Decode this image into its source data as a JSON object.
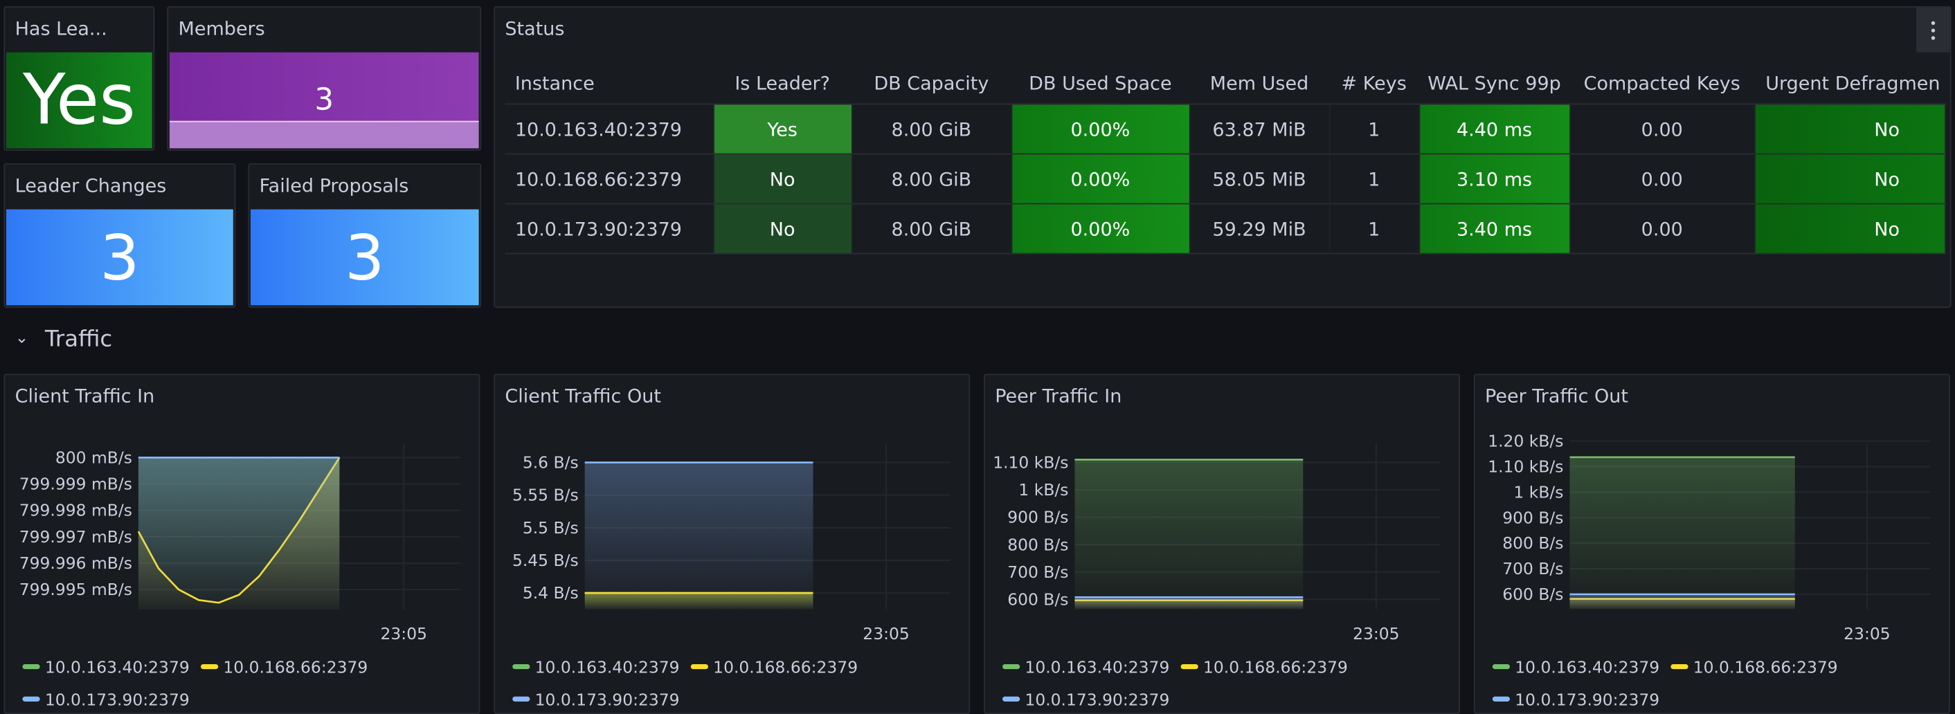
{
  "stats": [
    {
      "title": "Has Lea...",
      "value": "Yes"
    },
    {
      "title": "Members",
      "value": 3
    },
    {
      "title": "Leader Changes",
      "value": 3
    },
    {
      "title": "Failed Proposals",
      "value": 3
    }
  ],
  "status": {
    "title": "Status",
    "header": [
      "Instance",
      "Is Leader?",
      "DB Capacity",
      "DB Used Space",
      "Mem Used",
      "# Keys",
      "WAL Sync 99p",
      "Compacted Keys",
      "Urgent Defragmen"
    ],
    "rows": [
      [
        "10.0.163.40:2379",
        "Yes",
        "8.00 GiB",
        "0.00%",
        "63.87 MiB",
        1,
        "4.40 ms",
        "0.00",
        "No"
      ],
      [
        "10.0.168.66:2379",
        "No",
        "8.00 GiB",
        "0.00%",
        "58.05 MiB",
        1,
        "3.10 ms",
        "0.00",
        "No"
      ],
      [
        "10.0.173.90:2379",
        "No",
        "8.00 GiB",
        "0.00%",
        "59.29 MiB",
        1,
        "3.40 ms",
        "0.00",
        "No"
      ]
    ]
  },
  "row_title": "Traffic",
  "chart_data": [
    {
      "type": "line",
      "title": "Client Traffic In",
      "x": [
        1381.7,
        1381.95,
        1382.2,
        1382.45,
        1382.7,
        1382.95,
        1383.2,
        1383.45,
        1383.7,
        1383.95,
        1384.2
      ],
      "xlim": [
        1381.7,
        1385.7
      ],
      "xticks": [
        {
          "value": 1385,
          "label": "23:05"
        }
      ],
      "ylim": [
        799.99425,
        800.001
      ],
      "yticks": [
        {
          "value": 799.995,
          "label": "799.995 mB/s"
        },
        {
          "value": 799.996,
          "label": "799.996 mB/s"
        },
        {
          "value": 799.997,
          "label": "799.997 mB/s"
        },
        {
          "value": 799.998,
          "label": "799.998 mB/s"
        },
        {
          "value": 799.999,
          "label": "799.999 mB/s"
        },
        {
          "value": 800,
          "label": "800 mB/s"
        }
      ],
      "grid": true,
      "series": [
        {
          "name": "10.0.163.40:2379",
          "color": "#73bf69",
          "values": [
            800,
            800,
            800,
            800,
            800,
            800,
            800,
            800,
            800,
            800,
            800
          ]
        },
        {
          "name": "10.0.168.66:2379",
          "color": "#fade2a",
          "values": [
            799.9972,
            799.9958,
            799.995,
            799.9946,
            799.9945,
            799.9948,
            799.9955,
            799.9965,
            799.9976,
            799.9988,
            800
          ]
        },
        {
          "name": "10.0.173.90:2379",
          "color": "#8ab8ff",
          "values": [
            800,
            800,
            800,
            800,
            800,
            800,
            800,
            800,
            800,
            800,
            800
          ]
        }
      ]
    },
    {
      "type": "line",
      "title": "Client Traffic Out",
      "x": [
        1381.7,
        1381.95,
        1382.2,
        1382.45,
        1382.7,
        1382.95,
        1383.2,
        1383.45,
        1383.7,
        1383.95,
        1384.2
      ],
      "xlim": [
        1381.7,
        1385.7
      ],
      "xticks": [
        {
          "value": 1385,
          "label": "23:05"
        }
      ],
      "ylim": [
        5.375,
        5.648
      ],
      "yticks": [
        {
          "value": 5.4,
          "label": "5.4 B/s"
        },
        {
          "value": 5.45,
          "label": "5.45 B/s"
        },
        {
          "value": 5.5,
          "label": "5.5 B/s"
        },
        {
          "value": 5.55,
          "label": "5.55 B/s"
        },
        {
          "value": 5.6,
          "label": "5.6 B/s"
        }
      ],
      "grid": true,
      "series": [
        {
          "name": "10.0.163.40:2379",
          "color": "#73bf69",
          "values": [
            5.4,
            5.4,
            5.4,
            5.4,
            5.4,
            5.4,
            5.4,
            5.4,
            5.4,
            5.4,
            5.4
          ]
        },
        {
          "name": "10.0.168.66:2379",
          "color": "#fade2a",
          "values": [
            5.4,
            5.4,
            5.4,
            5.4,
            5.4,
            5.4,
            5.4,
            5.4,
            5.4,
            5.4,
            5.4
          ]
        },
        {
          "name": "10.0.173.90:2379",
          "color": "#8ab8ff",
          "values": [
            5.6,
            5.6,
            5.6,
            5.6,
            5.6,
            5.6,
            5.6,
            5.6,
            5.6,
            5.6,
            5.6
          ]
        }
      ]
    },
    {
      "type": "line",
      "title": "Peer Traffic In",
      "x": [
        1381.7,
        1381.95,
        1382.2,
        1382.45,
        1382.7,
        1382.95,
        1383.2,
        1383.45,
        1383.7,
        1383.95,
        1384.2
      ],
      "xlim": [
        1381.7,
        1385.7
      ],
      "xticks": [
        {
          "value": 1385,
          "label": "23:05"
        }
      ],
      "ylim": [
        564,
        1214
      ],
      "yticks": [
        {
          "value": 600,
          "label": "600 B/s"
        },
        {
          "value": 700,
          "label": "700 B/s"
        },
        {
          "value": 800,
          "label": "800 B/s"
        },
        {
          "value": 900,
          "label": "900 B/s"
        },
        {
          "value": 1000,
          "label": "1 kB/s"
        },
        {
          "value": 1100,
          "label": "1.10 kB/s"
        }
      ],
      "grid": true,
      "series": [
        {
          "name": "10.0.163.40:2379",
          "color": "#73bf69",
          "values": [
            1110,
            1110,
            1110,
            1110,
            1110,
            1110,
            1110,
            1110,
            1110,
            1110,
            1110
          ]
        },
        {
          "name": "10.0.168.66:2379",
          "color": "#fade2a",
          "values": [
            597,
            597,
            597,
            597,
            597,
            597,
            597,
            597,
            597,
            597,
            597
          ]
        },
        {
          "name": "10.0.173.90:2379",
          "color": "#8ab8ff",
          "values": [
            608,
            608,
            608,
            608,
            608,
            608,
            608,
            608,
            608,
            608,
            608
          ]
        }
      ]
    },
    {
      "type": "line",
      "title": "Peer Traffic Out",
      "x": [
        1381.7,
        1381.95,
        1382.2,
        1382.45,
        1382.7,
        1382.95,
        1383.2,
        1383.45,
        1383.7,
        1383.95,
        1384.2
      ],
      "xlim": [
        1381.7,
        1385.7
      ],
      "xticks": [
        {
          "value": 1385,
          "label": "23:05"
        }
      ],
      "ylim": [
        541,
        1239
      ],
      "yticks": [
        {
          "value": 600,
          "label": "600 B/s"
        },
        {
          "value": 700,
          "label": "700 B/s"
        },
        {
          "value": 800,
          "label": "800 B/s"
        },
        {
          "value": 900,
          "label": "900 B/s"
        },
        {
          "value": 1000,
          "label": "1 kB/s"
        },
        {
          "value": 1100,
          "label": "1.10 kB/s"
        },
        {
          "value": 1200,
          "label": "1.20 kB/s"
        }
      ],
      "grid": true,
      "series": [
        {
          "name": "10.0.163.40:2379",
          "color": "#73bf69",
          "values": [
            1137,
            1137,
            1137,
            1137,
            1137,
            1137,
            1137,
            1137,
            1137,
            1137,
            1137
          ]
        },
        {
          "name": "10.0.168.66:2379",
          "color": "#fade2a",
          "values": [
            582,
            582,
            582,
            582,
            582,
            582,
            582,
            582,
            582,
            582,
            582
          ]
        },
        {
          "name": "10.0.173.90:2379",
          "color": "#8ab8ff",
          "values": [
            600,
            600,
            600,
            600,
            600,
            600,
            600,
            600,
            600,
            600,
            600
          ]
        }
      ]
    }
  ]
}
